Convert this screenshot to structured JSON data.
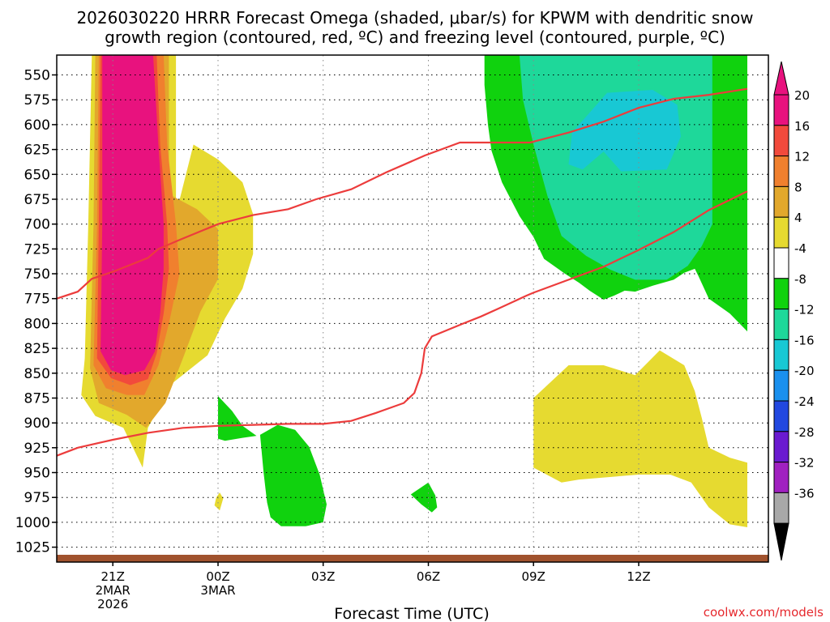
{
  "title_line1": "2026030220 HRRR Forecast Omega (shaded, μbar/s) for KPWM with dendritic snow",
  "title_line2": "growth region (contoured, red, ºC) and freezing level (contoured, purple, ºC)",
  "xlabel": "Forecast Time (UTC)",
  "credit": "coolwx.com/models",
  "colorbar": {
    "labels": [
      "20",
      "16",
      "12",
      "8",
      "4",
      "-4",
      "-8",
      "-12",
      "-16",
      "-20",
      "-24",
      "-28",
      "-32",
      "-36"
    ],
    "bins": [
      {
        "range": "20-24",
        "color": "#e8127e"
      },
      {
        "range": "16-20",
        "color": "#f24a3c"
      },
      {
        "range": "12-16",
        "color": "#f0802e"
      },
      {
        "range": "8-12",
        "color": "#e2a82c"
      },
      {
        "range": "4-8",
        "color": "#e6da30"
      },
      {
        "range": "-4-4",
        "color": "#ffffff"
      },
      {
        "range": "-8--4",
        "color": "#10d20e"
      },
      {
        "range": "-12--8",
        "color": "#1ed89a"
      },
      {
        "range": "-16--12",
        "color": "#18c8d4"
      },
      {
        "range": "-20--16",
        "color": "#1a90ee"
      },
      {
        "range": "-24--20",
        "color": "#2248e0"
      },
      {
        "range": "-28--24",
        "color": "#6a1ad0"
      },
      {
        "range": "-32--28",
        "color": "#a020c0"
      },
      {
        "range": "-36--32",
        "color": "#a8a8a8"
      }
    ],
    "top_arrow_color": "#e8127e",
    "bottom_arrow_color": "#000000"
  },
  "chart_data": {
    "type": "heatmap",
    "x_unit": "forecast hour (UTC, 21Z 2 Mar 2026 = 0)",
    "xlim": [
      -1.6,
      18.7
    ],
    "ylim_pressure": [
      1040,
      530
    ],
    "y_ticks": [
      550,
      575,
      600,
      625,
      650,
      675,
      700,
      725,
      750,
      775,
      800,
      825,
      850,
      875,
      900,
      925,
      950,
      975,
      1000,
      1025
    ],
    "x_ticks": [
      {
        "x": 0,
        "lines": [
          "21Z",
          "2MAR",
          "2026"
        ]
      },
      {
        "x": 3,
        "lines": [
          "00Z",
          "3MAR"
        ]
      },
      {
        "x": 6,
        "lines": [
          "03Z"
        ]
      },
      {
        "x": 9,
        "lines": [
          "06Z"
        ]
      },
      {
        "x": 12,
        "lines": [
          "09Z"
        ]
      },
      {
        "x": 15,
        "lines": [
          "12Z"
        ]
      }
    ],
    "grid": true,
    "ground_color": "#a0522d",
    "shaded_regions": [
      {
        "level": "4-8",
        "color": "#e6da30",
        "points": [
          [
            -0.6,
            530
          ],
          [
            1.8,
            530
          ],
          [
            1.8,
            690
          ],
          [
            2.3,
            620
          ],
          [
            3,
            635
          ],
          [
            3.7,
            658
          ],
          [
            4,
            690
          ],
          [
            4,
            730
          ],
          [
            3.7,
            765
          ],
          [
            3.2,
            795
          ],
          [
            2.7,
            832
          ],
          [
            1.7,
            860
          ],
          [
            1,
            905
          ],
          [
            0.85,
            945
          ],
          [
            0.3,
            905
          ],
          [
            -0.5,
            893
          ],
          [
            -0.9,
            872
          ],
          [
            -0.8,
            835
          ],
          [
            -0.7,
            700
          ]
        ]
      },
      {
        "level": "8-12",
        "color": "#e2a82c",
        "points": [
          [
            -0.5,
            530
          ],
          [
            1.6,
            530
          ],
          [
            1.6,
            670
          ],
          [
            2.4,
            685
          ],
          [
            3,
            705
          ],
          [
            3,
            755
          ],
          [
            2.5,
            788
          ],
          [
            2,
            835
          ],
          [
            1.5,
            880
          ],
          [
            0.95,
            905
          ],
          [
            0.4,
            892
          ],
          [
            -0.4,
            880
          ],
          [
            -0.65,
            845
          ],
          [
            -0.55,
            700
          ]
        ]
      },
      {
        "level": "12-16",
        "color": "#f0802e",
        "points": [
          [
            -0.4,
            530
          ],
          [
            1.45,
            530
          ],
          [
            1.55,
            620
          ],
          [
            1.8,
            700
          ],
          [
            1.9,
            750
          ],
          [
            1.6,
            800
          ],
          [
            1.3,
            842
          ],
          [
            0.9,
            872
          ],
          [
            0.4,
            872
          ],
          [
            -0.2,
            865
          ],
          [
            -0.55,
            842
          ],
          [
            -0.45,
            700
          ]
        ]
      },
      {
        "level": "16-20",
        "color": "#f24a3c",
        "points": [
          [
            -0.35,
            530
          ],
          [
            1.25,
            530
          ],
          [
            1.35,
            620
          ],
          [
            1.55,
            700
          ],
          [
            1.6,
            745
          ],
          [
            1.45,
            790
          ],
          [
            1.25,
            830
          ],
          [
            1,
            856
          ],
          [
            0.5,
            862
          ],
          [
            -0.05,
            855
          ],
          [
            -0.45,
            835
          ],
          [
            -0.4,
            700
          ]
        ]
      },
      {
        "level": "20-24",
        "color": "#e8127e",
        "points": [
          [
            -0.3,
            530
          ],
          [
            1.15,
            530
          ],
          [
            1.3,
            620
          ],
          [
            1.45,
            700
          ],
          [
            1.45,
            745
          ],
          [
            1.35,
            790
          ],
          [
            1.2,
            828
          ],
          [
            0.9,
            847
          ],
          [
            0.35,
            852
          ],
          [
            -0.05,
            847
          ],
          [
            -0.35,
            828
          ],
          [
            -0.3,
            700
          ]
        ]
      },
      {
        "level": "4-8",
        "color": "#e6da30",
        "points": [
          [
            2.9,
            983
          ],
          [
            3.05,
            988
          ],
          [
            3.15,
            976
          ],
          [
            3.05,
            970
          ],
          [
            2.95,
            975
          ]
        ]
      },
      {
        "level": "4-8",
        "color": "#e6da30",
        "points": [
          [
            12,
            875
          ],
          [
            13,
            842
          ],
          [
            14,
            842
          ],
          [
            14.9,
            852
          ],
          [
            15.6,
            827
          ],
          [
            16.3,
            842
          ],
          [
            16.6,
            868
          ],
          [
            16.8,
            895
          ],
          [
            17,
            925
          ],
          [
            17.6,
            935
          ],
          [
            18.1,
            940
          ],
          [
            18.1,
            1005
          ],
          [
            17.6,
            1002
          ],
          [
            17,
            985
          ],
          [
            16.5,
            960
          ],
          [
            15.9,
            952
          ],
          [
            15,
            952
          ],
          [
            13.3,
            957
          ],
          [
            12.8,
            960
          ],
          [
            12,
            945
          ]
        ]
      },
      {
        "level": "-8--4",
        "color": "#10d20e",
        "points": [
          [
            10.6,
            530
          ],
          [
            18.1,
            530
          ],
          [
            18.1,
            808
          ],
          [
            17.6,
            790
          ],
          [
            17,
            775
          ],
          [
            16.7,
            752
          ],
          [
            16.6,
            745
          ],
          [
            16.3,
            749
          ],
          [
            16,
            756
          ],
          [
            15.4,
            762
          ],
          [
            14.9,
            768
          ],
          [
            14.6,
            767
          ],
          [
            14.3,
            772
          ],
          [
            14,
            776
          ],
          [
            13.6,
            767
          ],
          [
            13.3,
            759
          ],
          [
            12.9,
            750
          ],
          [
            12.3,
            735
          ],
          [
            12,
            713
          ],
          [
            11.6,
            692
          ],
          [
            11.1,
            658
          ],
          [
            10.8,
            626
          ],
          [
            10.7,
            600
          ],
          [
            10.6,
            560
          ]
        ]
      },
      {
        "level": "-12--8",
        "color": "#1ed89a",
        "points": [
          [
            11.6,
            530
          ],
          [
            17.1,
            530
          ],
          [
            17.1,
            700
          ],
          [
            16.8,
            722
          ],
          [
            16.4,
            742
          ],
          [
            15.8,
            756
          ],
          [
            14.9,
            756
          ],
          [
            14.2,
            746
          ],
          [
            13.5,
            732
          ],
          [
            12.8,
            712
          ],
          [
            12.4,
            672
          ],
          [
            12,
            620
          ],
          [
            11.7,
            575
          ]
        ]
      },
      {
        "level": "-16--12",
        "color": "#18c8d4",
        "points": [
          [
            13.1,
            608
          ],
          [
            14.1,
            568
          ],
          [
            15.4,
            565
          ],
          [
            16.1,
            580
          ],
          [
            16.2,
            612
          ],
          [
            15.8,
            645
          ],
          [
            14.5,
            647
          ],
          [
            14,
            627
          ],
          [
            13.4,
            645
          ],
          [
            13,
            640
          ]
        ]
      },
      {
        "level": "-8--4",
        "color": "#10d20e",
        "points": [
          [
            3,
            873
          ],
          [
            3.4,
            888
          ],
          [
            3.7,
            903
          ],
          [
            4.1,
            913
          ],
          [
            3.7,
            915
          ],
          [
            3.2,
            918
          ],
          [
            3,
            916
          ]
        ]
      },
      {
        "level": "-8--4",
        "color": "#10d20e",
        "points": [
          [
            4.2,
            912
          ],
          [
            4.7,
            902
          ],
          [
            5.2,
            907
          ],
          [
            5.6,
            924
          ],
          [
            5.9,
            952
          ],
          [
            6.1,
            982
          ],
          [
            6,
            1000
          ],
          [
            5.5,
            1004
          ],
          [
            4.8,
            1004
          ],
          [
            4.5,
            995
          ],
          [
            4.4,
            980
          ],
          [
            4.3,
            950
          ]
        ]
      },
      {
        "level": "-8--4",
        "color": "#10d20e",
        "points": [
          [
            8.5,
            972
          ],
          [
            9,
            960
          ],
          [
            9.2,
            973
          ],
          [
            9.25,
            985
          ],
          [
            9.1,
            990
          ],
          [
            8.8,
            982
          ]
        ]
      }
    ],
    "series": [
      {
        "name": "",
        "color": "#ec3c3c",
        "points": [
          [
            -1.6,
            775
          ],
          [
            -1,
            768
          ],
          [
            -0.6,
            755
          ],
          [
            0,
            748
          ],
          [
            1,
            734
          ],
          [
            1.3,
            725
          ],
          [
            1.9,
            716
          ],
          [
            3,
            700
          ],
          [
            4,
            691
          ],
          [
            5,
            685
          ],
          [
            5.8,
            675
          ],
          [
            6.8,
            665
          ],
          [
            7.8,
            648
          ],
          [
            8.9,
            631
          ],
          [
            9.9,
            618
          ],
          [
            10.9,
            618
          ],
          [
            11.9,
            618
          ],
          [
            13,
            608
          ],
          [
            14,
            597
          ],
          [
            15,
            583
          ],
          [
            16,
            574
          ],
          [
            17,
            570
          ],
          [
            18.1,
            564
          ]
        ]
      },
      {
        "name": "",
        "color": "#ec3c3c",
        "points": [
          [
            -1.6,
            933
          ],
          [
            -1,
            925
          ],
          [
            0,
            917
          ],
          [
            1,
            910
          ],
          [
            2,
            905
          ],
          [
            3,
            903
          ],
          [
            4,
            902
          ],
          [
            5,
            901
          ],
          [
            6,
            901
          ],
          [
            6.8,
            898
          ],
          [
            7.5,
            890
          ],
          [
            8.3,
            880
          ],
          [
            8.6,
            870
          ],
          [
            8.8,
            850
          ],
          [
            8.9,
            825
          ],
          [
            9.1,
            813
          ],
          [
            10,
            800
          ],
          [
            10.5,
            793
          ],
          [
            11,
            785
          ],
          [
            11.8,
            772
          ],
          [
            12,
            769
          ],
          [
            13,
            756
          ],
          [
            14,
            743
          ],
          [
            15,
            726
          ],
          [
            16,
            708
          ],
          [
            17,
            686
          ],
          [
            18.1,
            667
          ]
        ]
      }
    ]
  }
}
